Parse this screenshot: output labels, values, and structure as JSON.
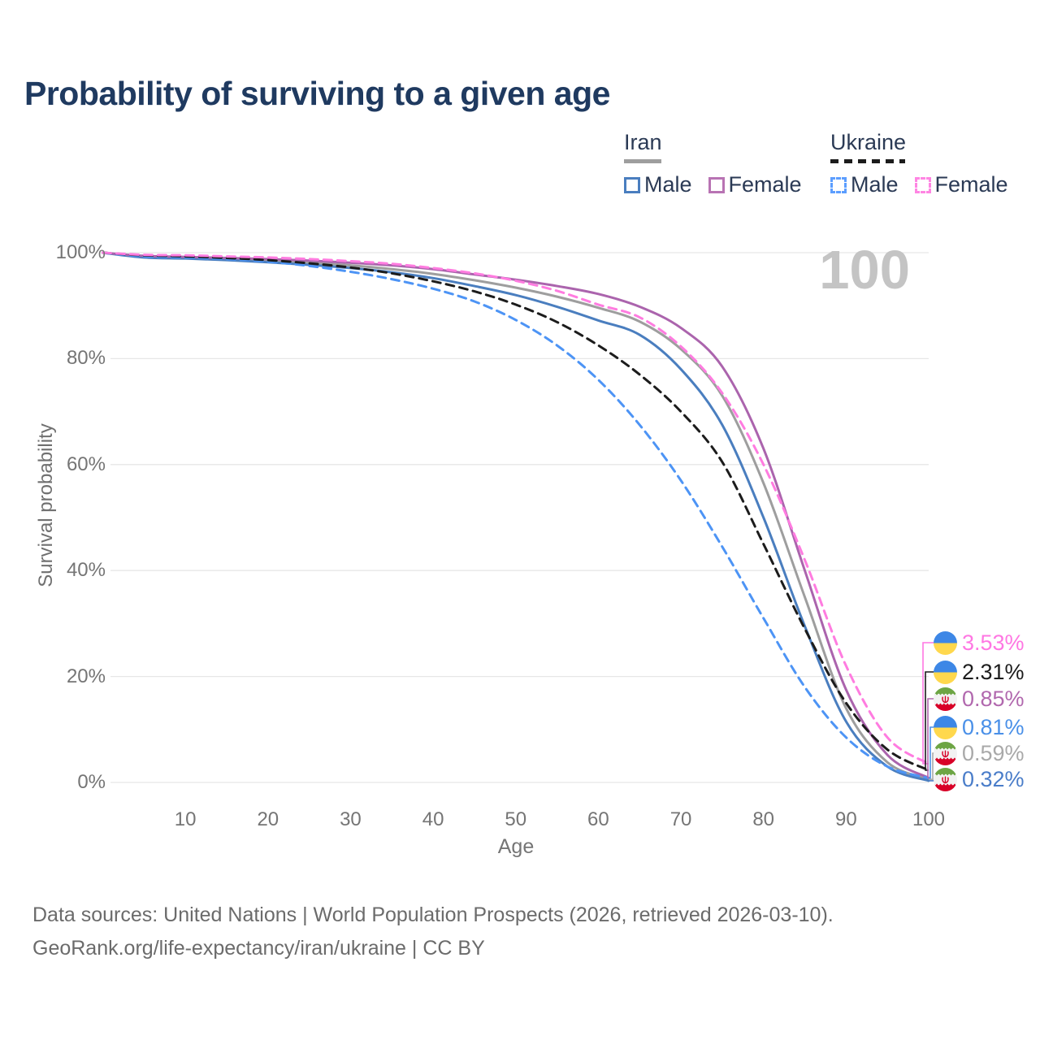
{
  "title": "Probability of surviving to a given age",
  "legend": {
    "groups": [
      {
        "name": "Iran",
        "line_style": "solid",
        "line_color": "#9e9e9e",
        "items": [
          {
            "label": "Male",
            "color": "#4a7ebf"
          },
          {
            "label": "Female",
            "color": "#b873b3"
          }
        ]
      },
      {
        "name": "Ukraine",
        "line_style": "dashed",
        "line_color": "#1c1c1c",
        "items": [
          {
            "label": "Male",
            "color": "#5c9eff"
          },
          {
            "label": "Female",
            "color": "#ff85e3"
          }
        ]
      }
    ]
  },
  "annotation": {
    "hover_age": "100"
  },
  "chart_data": {
    "type": "line",
    "title": "Probability of surviving to a given age",
    "xlabel": "Age",
    "ylabel": "Survival probability",
    "x": [
      0,
      5,
      10,
      15,
      20,
      25,
      30,
      35,
      40,
      45,
      50,
      55,
      60,
      65,
      70,
      75,
      80,
      85,
      90,
      95,
      100
    ],
    "xlim": [
      0,
      100
    ],
    "ylim": [
      0,
      100
    ],
    "xticks": [
      10,
      20,
      30,
      40,
      50,
      60,
      70,
      80,
      90,
      100
    ],
    "yticks": [
      0,
      20,
      40,
      60,
      80,
      100
    ],
    "ytick_suffix": "%",
    "grid": "horizontal",
    "series": [
      {
        "name": "Iran Both sexes",
        "country": "iran",
        "sex": "both",
        "color": "#9e9e9e",
        "dashed": false,
        "values": [
          100,
          99.25,
          99.05,
          98.8,
          98.5,
          98.1,
          97.6,
          96.9,
          96.0,
          94.8,
          93.4,
          91.7,
          89.6,
          87.0,
          81.8,
          73.0,
          56.5,
          35.0,
          14.0,
          3.8,
          0.59
        ]
      },
      {
        "name": "Iran Male",
        "country": "iran",
        "sex": "male",
        "color": "#4a7ebf",
        "dashed": false,
        "values": [
          100,
          99.1,
          98.9,
          98.6,
          98.2,
          97.7,
          97.1,
          96.3,
          95.2,
          93.7,
          92.0,
          89.8,
          87.2,
          84.5,
          78.0,
          67.5,
          50.0,
          29.5,
          11.5,
          3.0,
          0.32
        ]
      },
      {
        "name": "Iran Female",
        "country": "iran",
        "sex": "female",
        "color": "#ab64ad",
        "dashed": false,
        "values": [
          100,
          99.4,
          99.2,
          99.0,
          98.8,
          98.5,
          98.1,
          97.6,
          96.9,
          95.9,
          94.9,
          93.7,
          92.2,
          89.8,
          85.8,
          78.5,
          63.0,
          40.0,
          17.5,
          5.2,
          0.85
        ]
      },
      {
        "name": "Ukraine Male",
        "country": "ukraine",
        "sex": "male",
        "color": "#4d94f5",
        "dashed": true,
        "values": [
          100,
          99.3,
          99.1,
          98.8,
          98.3,
          97.5,
          96.4,
          95.0,
          93.2,
          90.8,
          87.3,
          82.5,
          76.0,
          67.5,
          57.0,
          44.5,
          31.0,
          18.0,
          8.5,
          3.0,
          0.81
        ]
      },
      {
        "name": "Ukraine Both sexes",
        "country": "ukraine",
        "sex": "both",
        "color": "#1c1c1c",
        "dashed": true,
        "values": [
          100,
          99.5,
          99.3,
          99.0,
          98.6,
          98.0,
          97.2,
          96.1,
          94.6,
          92.7,
          90.2,
          86.9,
          82.5,
          77.0,
          70.0,
          60.5,
          45.0,
          29.0,
          15.0,
          6.2,
          2.31
        ]
      },
      {
        "name": "Ukraine Female",
        "country": "ukraine",
        "sex": "female",
        "color": "#ff7ce0",
        "dashed": true,
        "values": [
          100,
          99.6,
          99.5,
          99.3,
          99.1,
          98.8,
          98.4,
          97.9,
          97.1,
          96.1,
          94.7,
          92.8,
          90.2,
          87.8,
          82.3,
          73.5,
          60.0,
          42.0,
          22.0,
          8.5,
          3.53
        ]
      }
    ],
    "end_labels": [
      {
        "value": "3.53%",
        "country": "ukraine",
        "series": "Ukraine Female",
        "color": "#ff77e3",
        "pct": 3.53
      },
      {
        "value": "2.31%",
        "country": "ukraine",
        "series": "Ukraine Both sexes",
        "color": "#1c1c1c",
        "pct": 2.31
      },
      {
        "value": "0.85%",
        "country": "iran",
        "series": "Iran Female",
        "color": "#b168ae",
        "pct": 0.85
      },
      {
        "value": "0.81%",
        "country": "ukraine",
        "series": "Ukraine Male",
        "color": "#4a90e8",
        "pct": 0.81
      },
      {
        "value": "0.59%",
        "country": "iran",
        "series": "Iran Both sexes",
        "color": "#a9a9a9",
        "pct": 0.59
      },
      {
        "value": "0.32%",
        "country": "iran",
        "series": "Iran Male",
        "color": "#4a7dc9",
        "pct": 0.32
      }
    ]
  },
  "footer": {
    "line1": "Data sources: United Nations | World Population Prospects (2026, retrieved 2026-03-10).",
    "line2": "GeoRank.org/life-expectancy/iran/ukraine | CC BY"
  }
}
